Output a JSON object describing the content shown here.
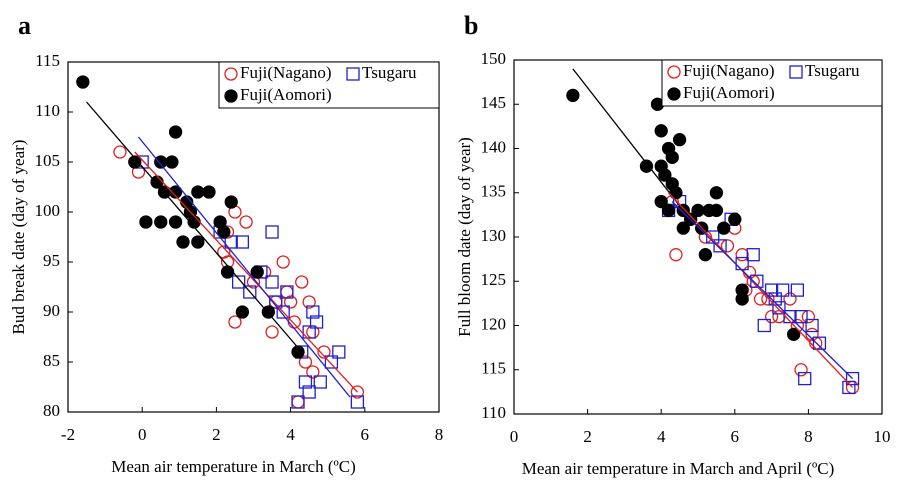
{
  "chart_data": [
    {
      "type": "scatter",
      "panel": "a",
      "x_label": "Mean air temperature in March (ºC)",
      "y_label": "Bud break date (day of year)",
      "xlim": [
        -2,
        8
      ],
      "ylim": [
        80,
        115
      ],
      "xticks": [
        -2,
        0,
        2,
        4,
        6,
        8
      ],
      "yticks": [
        80,
        85,
        90,
        95,
        100,
        105,
        110,
        115
      ],
      "legend": "upper right",
      "series": [
        {
          "name": "Fuji(Nagano)",
          "color": "#e02020",
          "marker": "circle-open",
          "x": [
            -0.6,
            -0.1,
            2.3,
            2.5,
            2.8,
            2.2,
            2.3,
            2.5,
            3.0,
            3.5,
            3.8,
            3.9,
            4.0,
            4.1,
            4.3,
            4.4,
            4.5,
            4.6,
            4.6,
            4.9,
            5.8,
            4.2,
            3.3,
            3.6
          ],
          "values": [
            106,
            104,
            98,
            100,
            99,
            96,
            95,
            89,
            93,
            88,
            95,
            92,
            91,
            89,
            93,
            85,
            91,
            88,
            84,
            86,
            82,
            81,
            94,
            91
          ]
        },
        {
          "name": "Tsugaru",
          "color": "#2020d0",
          "marker": "square-open",
          "x": [
            0,
            2.1,
            2.4,
            2.7,
            2.6,
            2.9,
            3.2,
            3.5,
            3.5,
            3.6,
            3.8,
            3.9,
            4.2,
            4.4,
            4.5,
            4.6,
            4.5,
            4.7,
            4.8,
            5.1,
            5.3,
            5.8,
            4.3
          ],
          "values": [
            105,
            98,
            97,
            97,
            93,
            92,
            94,
            98,
            93,
            91,
            90,
            92,
            81,
            83,
            82,
            90,
            88,
            89,
            83,
            85,
            86,
            81,
            86
          ]
        },
        {
          "name": "Fuji(Aomori)",
          "color": "#000000",
          "marker": "circle-filled",
          "x": [
            -1.6,
            -0.2,
            0.5,
            0.8,
            0.9,
            0.4,
            0.6,
            0.9,
            1.2,
            1.3,
            0.1,
            0.5,
            0.9,
            1.5,
            1.8,
            1.4,
            1.1,
            1.5,
            2.1,
            2.4,
            2.2,
            2.3,
            2.7,
            3.1,
            3.4,
            4.2
          ],
          "values": [
            113,
            105,
            105,
            105,
            108,
            103,
            102,
            102,
            101,
            100,
            99,
            99,
            99,
            102,
            102,
            99,
            97,
            97,
            99,
            101,
            98,
            94,
            90,
            94,
            90,
            86
          ]
        }
      ],
      "trend_lines": [
        {
          "color": "#000000",
          "x": [
            -1.5,
            4.3
          ],
          "y": [
            111,
            86
          ]
        },
        {
          "color": "#e02020",
          "x": [
            -0.2,
            5.8
          ],
          "y": [
            106,
            82
          ]
        },
        {
          "color": "#2020d0",
          "x": [
            -0.1,
            5.6
          ],
          "y": [
            107.5,
            81.5
          ]
        }
      ]
    },
    {
      "type": "scatter",
      "panel": "b",
      "x_label": "Mean air temperature in March and April (ºC)",
      "y_label": "Full bloom date (day of year)",
      "xlim": [
        0,
        10
      ],
      "ylim": [
        110,
        150
      ],
      "xticks": [
        0,
        2,
        4,
        6,
        8,
        10
      ],
      "yticks": [
        110,
        115,
        120,
        125,
        130,
        135,
        140,
        145,
        150
      ],
      "legend": "upper right",
      "series": [
        {
          "name": "Fuji(Nagano)",
          "color": "#e02020",
          "marker": "circle-open",
          "x": [
            4.4,
            4.3,
            5.2,
            5.8,
            6.0,
            6.2,
            6.4,
            6.5,
            6.7,
            7.0,
            7.2,
            7.5,
            7.8,
            8.0,
            8.1,
            8.2,
            9.2,
            6.3,
            7.7,
            6.9
          ],
          "values": [
            128,
            134,
            130,
            129,
            131,
            128,
            126,
            125,
            123,
            121,
            121,
            123,
            115,
            121,
            119,
            118,
            113,
            124,
            120,
            123
          ]
        },
        {
          "name": "Tsugaru",
          "color": "#2020d0",
          "marker": "square-open",
          "x": [
            4.2,
            4.5,
            5.4,
            5.6,
            5.9,
            6.2,
            6.5,
            6.6,
            6.8,
            7.0,
            7.2,
            7.3,
            7.5,
            7.7,
            7.9,
            8.1,
            8.3,
            9.2,
            7.8,
            7.1,
            9.1
          ],
          "values": [
            133,
            134,
            130,
            129,
            132,
            127,
            128,
            125,
            120,
            124,
            122,
            124,
            121,
            124,
            114,
            120,
            118,
            114,
            121,
            123,
            113
          ]
        },
        {
          "name": "Fuji(Aomori)",
          "color": "#000000",
          "marker": "circle-filled",
          "x": [
            1.6,
            3.6,
            3.9,
            4.0,
            4.0,
            4.1,
            4.2,
            4.3,
            4.3,
            4.4,
            4.5,
            4.6,
            4.2,
            4.6,
            4.8,
            5.0,
            5.1,
            5.2,
            5.3,
            5.5,
            5.5,
            5.7,
            6.0,
            6.2,
            6.2,
            7.6,
            4.0
          ],
          "values": [
            146,
            138,
            145,
            142,
            138,
            137,
            140,
            139,
            136,
            135,
            141,
            133,
            133,
            131,
            132,
            133,
            131,
            128,
            133,
            135,
            133,
            131,
            132,
            123,
            124,
            119,
            134
          ]
        }
      ],
      "trend_lines": [
        {
          "color": "#000000",
          "x": [
            1.6,
            4.6
          ],
          "y": [
            149,
            133
          ]
        },
        {
          "color": "#e02020",
          "x": [
            4.2,
            9.2
          ],
          "y": [
            135,
            113
          ]
        },
        {
          "color": "#2020d0",
          "x": [
            4.3,
            9.2
          ],
          "y": [
            134,
            114
          ]
        }
      ]
    }
  ]
}
